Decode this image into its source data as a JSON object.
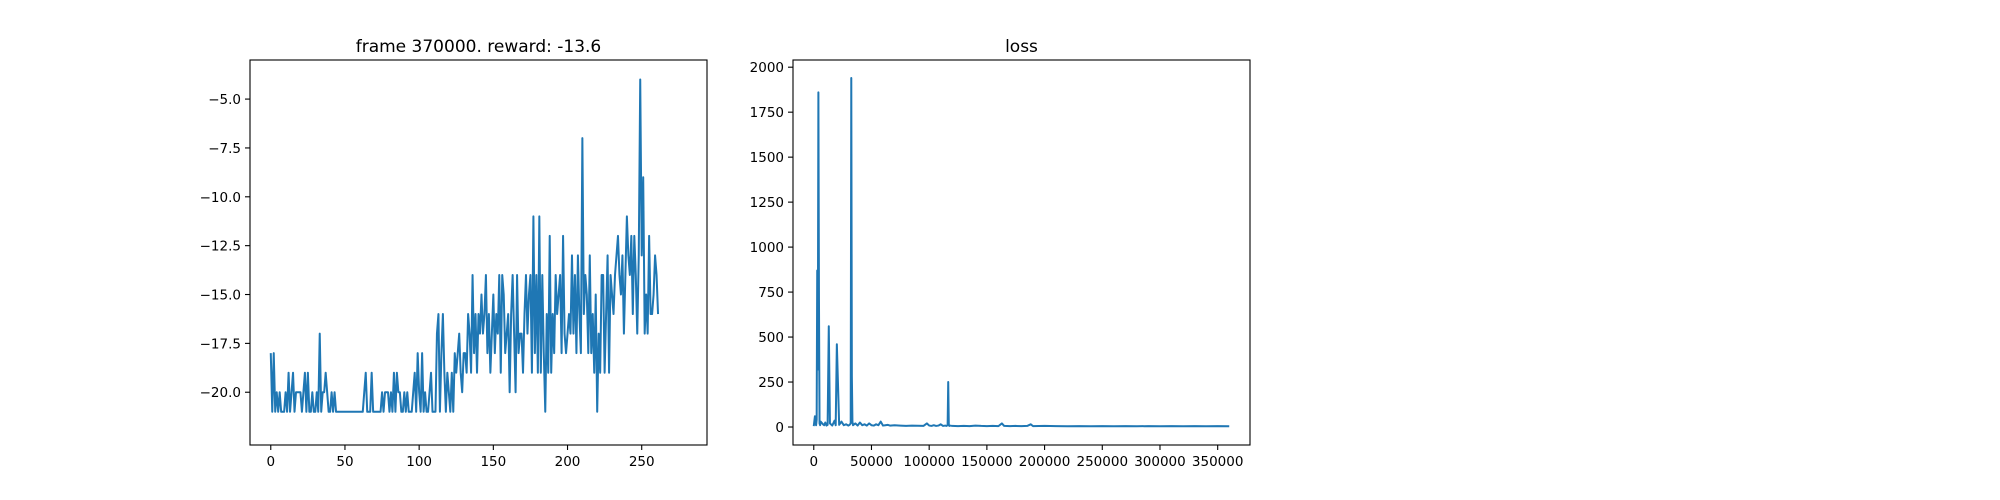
{
  "chart_data": [
    {
      "type": "line",
      "title": "frame 370000. reward: -13.6",
      "xlabel": "",
      "ylabel": "",
      "xlim": [
        -14,
        294
      ],
      "ylim": [
        -22.7,
        -3.0
      ],
      "xticks": [
        0,
        50,
        100,
        150,
        200,
        250
      ],
      "xtick_labels": [
        "0",
        "50",
        "100",
        "150",
        "200",
        "250"
      ],
      "yticks": [
        -20.0,
        -17.5,
        -15.0,
        -12.5,
        -10.0,
        -7.5,
        -5.0
      ],
      "ytick_labels": [
        "−20.0",
        "−17.5",
        "−15.0",
        "−12.5",
        "−10.0",
        "−7.5",
        "−5.0"
      ],
      "grid": false,
      "color": "#1f77b4",
      "series": [
        {
          "values": [
            -18,
            -21,
            -18,
            -21,
            -20,
            -21,
            -20,
            -21,
            -21,
            -21,
            -20,
            -21,
            -19,
            -21,
            -20,
            -19,
            -21,
            -20,
            -20,
            -20,
            -20,
            -21,
            -20,
            -19,
            -21,
            -19,
            -21,
            -21,
            -20,
            -21,
            -21,
            -20,
            -21,
            -17,
            -21,
            -20,
            -20,
            -19,
            -20,
            -21,
            -21,
            -20,
            -21,
            -20,
            -21,
            -21,
            -21,
            -21,
            -21,
            -21,
            -21,
            -21,
            -21,
            -21,
            -21,
            -21,
            -21,
            -21,
            -21,
            -21,
            -21,
            -21,
            -21,
            -20,
            -19,
            -21,
            -21,
            -21,
            -19,
            -21,
            -21,
            -21,
            -21,
            -21,
            -21,
            -20,
            -21,
            -20,
            -20,
            -20,
            -21,
            -20,
            -21,
            -19,
            -21,
            -19,
            -20,
            -20,
            -21,
            -21,
            -20,
            -21,
            -20,
            -21,
            -21,
            -21,
            -20,
            -19,
            -21,
            -18,
            -20,
            -21,
            -18,
            -21,
            -20,
            -21,
            -21,
            -20,
            -19,
            -21,
            -21,
            -21,
            -17,
            -16,
            -21,
            -18,
            -16,
            -19,
            -21,
            -19,
            -20,
            -21,
            -19,
            -21,
            -18,
            -19,
            -18,
            -17,
            -19,
            -20,
            -18,
            -18,
            -19,
            -16,
            -17,
            -19,
            -14,
            -18,
            -16,
            -19,
            -16,
            -17,
            -15,
            -17,
            -16,
            -14,
            -18,
            -16,
            -19,
            -17,
            -15,
            -18,
            -16,
            -17,
            -14,
            -19,
            -14,
            -15,
            -18,
            -17,
            -16,
            -20,
            -16,
            -14,
            -17,
            -20,
            -14,
            -18,
            -17,
            -17,
            -19,
            -16,
            -14,
            -17,
            -15,
            -14,
            -19,
            -11,
            -18,
            -14,
            -19,
            -11,
            -19,
            -14,
            -18,
            -21,
            -16,
            -19,
            -12,
            -19,
            -16,
            -18,
            -14,
            -16,
            -15,
            -14,
            -18,
            -12,
            -17,
            -18,
            -17,
            -16,
            -17,
            -13,
            -17,
            -14,
            -18,
            -13,
            -16,
            -18,
            -7,
            -16,
            -14,
            -15,
            -18,
            -13,
            -18,
            -16,
            -19,
            -15,
            -21,
            -17,
            -19,
            -14,
            -14,
            -19,
            -16,
            -13,
            -19,
            -14,
            -15,
            -16,
            -14,
            -13,
            -12,
            -14,
            -15,
            -13,
            -17,
            -14,
            -11,
            -13,
            -14,
            -12,
            -16,
            -12,
            -14,
            -17,
            -13,
            -4,
            -13,
            -9,
            -17,
            -15,
            -17,
            -12,
            -16,
            -16,
            -15,
            -13,
            -14,
            -16
          ]
        }
      ]
    },
    {
      "type": "line",
      "title": "loss",
      "xlabel": "",
      "ylabel": "",
      "xlim": [
        -18000,
        378000
      ],
      "ylim": [
        -100,
        2040
      ],
      "xticks": [
        0,
        50000,
        100000,
        150000,
        200000,
        250000,
        300000,
        350000
      ],
      "xtick_labels": [
        "0",
        "50000",
        "100000",
        "150000",
        "200000",
        "250000",
        "300000",
        "350000"
      ],
      "yticks": [
        0,
        250,
        500,
        750,
        1000,
        1250,
        1500,
        1750,
        2000
      ],
      "ytick_labels": [
        "0",
        "250",
        "500",
        "750",
        "1000",
        "1250",
        "1500",
        "1750",
        "2000"
      ],
      "grid": false,
      "color": "#1f77b4",
      "series": [
        {
          "x": [
            0,
            1000,
            2000,
            2500,
            3000,
            3500,
            4000,
            4500,
            5000,
            5500,
            6000,
            8000,
            9000,
            10000,
            11000,
            12000,
            13000,
            14000,
            16000,
            18000,
            19000,
            20000,
            22000,
            24000,
            26000,
            28000,
            30000,
            31000,
            32000,
            32500,
            33000,
            33500,
            34000,
            36000,
            38000,
            40000,
            42000,
            44000,
            46000,
            48000,
            50000,
            52000,
            54000,
            56000,
            58000,
            60000,
            62000,
            64000,
            66000,
            70000,
            75000,
            80000,
            85000,
            90000,
            95000,
            98000,
            100000,
            102000,
            104000,
            106000,
            108000,
            110000,
            112000,
            114000,
            115000,
            116000,
            116500,
            117000,
            117500,
            118000,
            120000,
            125000,
            130000,
            135000,
            140000,
            145000,
            150000,
            155000,
            160000,
            163000,
            165000,
            170000,
            175000,
            180000,
            185000,
            188000,
            190000,
            200000,
            210000,
            220000,
            230000,
            240000,
            250000,
            260000,
            270000,
            280000,
            290000,
            300000,
            310000,
            320000,
            330000,
            340000,
            350000,
            360000
          ],
          "values": [
            5,
            60,
            10,
            40,
            870,
            320,
            1860,
            700,
            20,
            10,
            30,
            15,
            10,
            25,
            8,
            12,
            560,
            20,
            8,
            35,
            10,
            460,
            12,
            30,
            10,
            15,
            8,
            12,
            20,
            1940,
            280,
            30,
            10,
            20,
            8,
            25,
            10,
            15,
            8,
            20,
            10,
            8,
            15,
            10,
            30,
            8,
            10,
            12,
            8,
            10,
            8,
            6,
            8,
            7,
            6,
            20,
            8,
            6,
            10,
            6,
            8,
            15,
            6,
            8,
            6,
            10,
            250,
            10,
            6,
            8,
            6,
            5,
            6,
            5,
            8,
            6,
            5,
            6,
            5,
            20,
            6,
            5,
            6,
            5,
            6,
            15,
            5,
            6,
            5,
            4,
            5,
            4,
            5,
            4,
            5,
            4,
            5,
            4,
            5,
            4,
            5,
            4,
            5,
            4
          ]
        }
      ]
    }
  ]
}
